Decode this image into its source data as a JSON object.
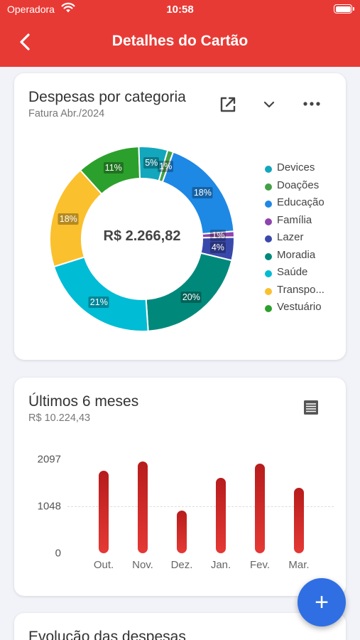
{
  "status": {
    "carrier": "Operadora",
    "time": "10:58"
  },
  "header": {
    "title": "Detalhes do Cartão",
    "back_icon": "chevron-left-icon"
  },
  "category_card": {
    "title": "Despesas por categoria",
    "subtitle": "Fatura Abr./2024",
    "total": "R$ 2.266,82",
    "icons": [
      "open-external-icon",
      "chevron-down-icon",
      "more-horizontal-icon"
    ]
  },
  "months_card": {
    "title": "Últimos 6 meses",
    "subtitle": "R$ 10.224,43",
    "icon": "table-icon"
  },
  "evolution_card": {
    "title": "Evolução das despesas"
  },
  "fab": {
    "label": "+"
  },
  "chart_data": [
    {
      "type": "pie",
      "categories": [
        "Devices",
        "Doações",
        "Educação",
        "Família",
        "Lazer",
        "Moradia",
        "Saúde",
        "Transporte",
        "Vestuário"
      ],
      "legend_labels": [
        "Devices",
        "Doações",
        "Educação",
        "Família",
        "Lazer",
        "Moradia",
        "Saúde",
        "Transpo...",
        "Vestuário"
      ],
      "slices": [
        {
          "category": "Vestuário",
          "percent": 11,
          "label": "11%",
          "color": "#2ca02c"
        },
        {
          "category": "Devices",
          "percent": 5,
          "label": "5%",
          "color": "#12a7bd"
        },
        {
          "category": "Doações",
          "percent": 1,
          "label": "1%",
          "color": "#43a047"
        },
        {
          "category": "Educação",
          "percent": 18,
          "label": "18%",
          "color": "#1e88e5"
        },
        {
          "category": "Família",
          "percent": 1,
          "label": "1%",
          "color": "#8e44ad"
        },
        {
          "category": "Lazer",
          "percent": 4,
          "label": "4%",
          "color": "#3949ab"
        },
        {
          "category": "Moradia",
          "percent": 20,
          "label": "20%",
          "color": "#00897b"
        },
        {
          "category": "Saúde",
          "percent": 21,
          "label": "21%",
          "color": "#00bcd4"
        },
        {
          "category": "Transporte",
          "percent": 18,
          "label": "18%",
          "color": "#fbc02d"
        }
      ],
      "colors": [
        "#12a7bd",
        "#43a047",
        "#1e88e5",
        "#8e44ad",
        "#3949ab",
        "#00897b",
        "#00bcd4",
        "#fbc02d",
        "#2ca02c"
      ],
      "legend_position": "right",
      "center_label": "R$ 2.266,82"
    },
    {
      "type": "bar",
      "categories": [
        "Out.",
        "Nov.",
        "Dez.",
        "Jan.",
        "Fev.",
        "Mar."
      ],
      "values": [
        1850,
        2050,
        950,
        1680,
        2000,
        1460
      ],
      "y_ticks": [
        "2097",
        "1048",
        "0"
      ],
      "ylim": [
        0,
        2097
      ],
      "color": "#c62828",
      "grid": "dashed line at 1048"
    }
  ]
}
